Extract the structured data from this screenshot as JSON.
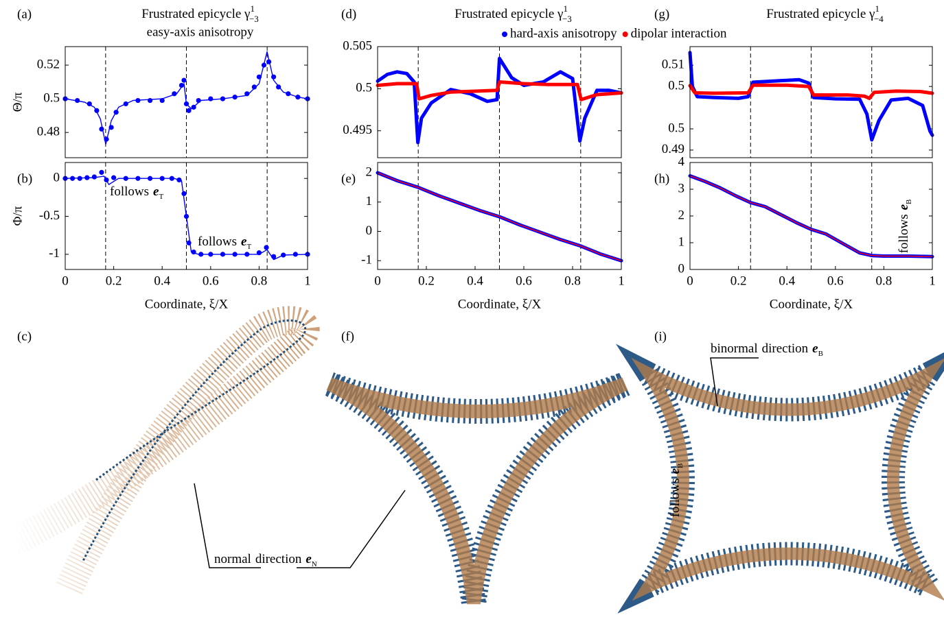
{
  "chart_data": [
    {
      "type": "line",
      "panel": "(a)",
      "title": "Frustrated epicycle γ",
      "title_sup": "1",
      "title_sub": "−3",
      "subtitle": "easy-axis anisotropy",
      "ylabel": "Θ/π",
      "xlim": [
        0,
        1
      ],
      "ylim": [
        0.465,
        0.531
      ],
      "yticks": [
        0.48,
        0.5,
        0.52
      ],
      "vlines": [
        0.1667,
        0.5,
        0.8333
      ],
      "series": [
        {
          "color": "#0000ff",
          "style": "dots",
          "x": [
            0,
            0.05,
            0.1,
            0.13,
            0.15,
            0.17,
            0.19,
            0.21,
            0.25,
            0.3,
            0.35,
            0.4,
            0.45,
            0.48,
            0.49,
            0.5,
            0.51,
            0.53,
            0.55,
            0.6,
            0.65,
            0.7,
            0.75,
            0.78,
            0.8,
            0.82,
            0.84,
            0.86,
            0.88,
            0.92,
            0.96,
            1
          ],
          "values": [
            0.5,
            0.499,
            0.497,
            0.493,
            0.482,
            0.476,
            0.483,
            0.492,
            0.497,
            0.499,
            0.499,
            0.499,
            0.503,
            0.508,
            0.511,
            0.497,
            0.493,
            0.495,
            0.499,
            0.5,
            0.5,
            0.501,
            0.503,
            0.507,
            0.513,
            0.52,
            0.522,
            0.513,
            0.507,
            0.503,
            0.501,
            0.5
          ]
        },
        {
          "color": "#0000ff",
          "style": "line",
          "x": [
            0,
            0.08,
            0.12,
            0.145,
            0.167,
            0.19,
            0.22,
            0.28,
            0.4,
            0.46,
            0.49,
            0.5,
            0.52,
            0.56,
            0.65,
            0.75,
            0.8,
            0.833,
            0.86,
            0.9,
            0.96,
            1
          ],
          "values": [
            0.5,
            0.498,
            0.495,
            0.488,
            0.473,
            0.487,
            0.495,
            0.499,
            0.5,
            0.503,
            0.509,
            0.497,
            0.494,
            0.499,
            0.5,
            0.502,
            0.509,
            0.528,
            0.511,
            0.504,
            0.501,
            0.5
          ]
        }
      ]
    },
    {
      "type": "line",
      "panel": "(b)",
      "ylabel": "Φ/π",
      "xlabel": "Coordinate, ξ/X",
      "xlim": [
        0,
        1
      ],
      "ylim": [
        -1.2,
        0.21
      ],
      "xticks": [
        0,
        0.2,
        0.4,
        0.6,
        0.8,
        1
      ],
      "yticks": [
        -1,
        -0.5,
        0
      ],
      "vlines": [
        0.1667,
        0.5,
        0.8333
      ],
      "annotations": [
        {
          "text": "follows",
          "sym": "e",
          "sub": "T"
        },
        {
          "text": "follows",
          "sym": "e",
          "sub": "T"
        }
      ],
      "series": [
        {
          "color": "#0000ff",
          "style": "dots",
          "x": [
            0,
            0.03,
            0.06,
            0.09,
            0.12,
            0.15,
            0.17,
            0.2,
            0.25,
            0.3,
            0.35,
            0.4,
            0.44,
            0.47,
            0.49,
            0.5,
            0.51,
            0.53,
            0.56,
            0.6,
            0.65,
            0.7,
            0.75,
            0.8,
            0.83,
            0.86,
            0.9,
            0.95,
            1
          ],
          "values": [
            0,
            0,
            0,
            0.01,
            0.02,
            0.08,
            -0.02,
            0.01,
            0,
            0,
            0,
            0,
            0,
            -0.02,
            -0.2,
            -0.5,
            -0.85,
            -0.97,
            -1,
            -1,
            -1,
            -1,
            -1,
            -0.98,
            -0.91,
            -1.03,
            -1.01,
            -1,
            -1
          ]
        },
        {
          "color": "#0000ff",
          "style": "line",
          "x": [
            0,
            0.12,
            0.16,
            0.18,
            0.22,
            0.45,
            0.48,
            0.5,
            0.52,
            0.55,
            0.8,
            0.833,
            0.86,
            0.9,
            1
          ],
          "values": [
            0,
            0.01,
            0.03,
            -0.08,
            0,
            0,
            -0.03,
            -0.5,
            -0.97,
            -1,
            -1,
            -0.94,
            -1.07,
            -1.01,
            -1
          ]
        }
      ]
    },
    {
      "type": "line",
      "panel": "(d)",
      "title": "Frustrated epicycle γ",
      "title_sup": "1",
      "title_sub": "−3",
      "xlim": [
        0,
        1
      ],
      "ylim": [
        0.4918,
        0.505
      ],
      "yticks": [
        0.495,
        0.5,
        0.505
      ],
      "vlines": [
        0.1667,
        0.5,
        0.8333
      ],
      "series": [
        {
          "name": "hard-axis anisotropy",
          "color": "#0000ff",
          "style": "thick",
          "x": [
            0,
            0.04,
            0.08,
            0.12,
            0.15,
            0.165,
            0.18,
            0.22,
            0.3,
            0.38,
            0.45,
            0.49,
            0.5,
            0.55,
            0.6,
            0.68,
            0.75,
            0.8,
            0.83,
            0.85,
            0.9,
            0.95,
            1
          ],
          "values": [
            0.5009,
            0.5017,
            0.502,
            0.5018,
            0.5008,
            0.4936,
            0.4965,
            0.4983,
            0.4999,
            0.4994,
            0.4985,
            0.4987,
            0.5036,
            0.5013,
            0.5004,
            0.5008,
            0.502,
            0.5012,
            0.4938,
            0.4965,
            0.4998,
            0.4998,
            0.4995
          ]
        },
        {
          "name": "dipolar interaction",
          "color": "#ff0000",
          "style": "thick",
          "x": [
            0,
            0.08,
            0.16,
            0.17,
            0.22,
            0.3,
            0.4,
            0.49,
            0.5,
            0.6,
            0.7,
            0.82,
            0.835,
            0.9,
            1
          ],
          "values": [
            0.5004,
            0.5006,
            0.5006,
            0.4988,
            0.4992,
            0.4996,
            0.4997,
            0.4998,
            0.5008,
            0.5006,
            0.5005,
            0.5005,
            0.4987,
            0.4993,
            0.4995
          ]
        }
      ]
    },
    {
      "type": "line",
      "panel": "(e)",
      "xlabel": "Coordinate, ξ/X",
      "xlim": [
        0,
        1
      ],
      "ylim": [
        -1.3,
        2.35
      ],
      "xticks": [
        0,
        0.2,
        0.4,
        0.6,
        0.8,
        1
      ],
      "yticks": [
        -1,
        0,
        1,
        2
      ],
      "vlines": [
        0.1667,
        0.5,
        0.8333
      ],
      "series": [
        {
          "color": "#0000ff",
          "style": "thick",
          "x": [
            0,
            0.0833,
            0.1667,
            0.25,
            0.3333,
            0.4167,
            0.5,
            0.5833,
            0.6667,
            0.75,
            0.8333,
            0.9167,
            1
          ],
          "values": [
            2,
            1.72,
            1.5,
            1.22,
            0.97,
            0.72,
            0.5,
            0.22,
            -0.03,
            -0.28,
            -0.5,
            -0.78,
            -1
          ]
        },
        {
          "color": "#ff0000",
          "style": "line",
          "x": [
            0,
            0.0833,
            0.1667,
            0.25,
            0.3333,
            0.4167,
            0.5,
            0.5833,
            0.6667,
            0.75,
            0.8333,
            0.9167,
            1
          ],
          "values": [
            2,
            1.72,
            1.5,
            1.22,
            0.97,
            0.72,
            0.5,
            0.22,
            -0.03,
            -0.28,
            -0.5,
            -0.78,
            -1
          ]
        }
      ]
    },
    {
      "type": "line",
      "panel": "(g)",
      "title": "Frustrated epicycle γ",
      "title_sup": "1",
      "title_sub": "−4",
      "xlim": [
        0,
        1
      ],
      "ylim": [
        0.4882,
        0.5144
      ],
      "yticks": [
        0.49,
        {
          "value": 0.495,
          "label": "0.5"
        },
        {
          "value": 0.505,
          "label": "0.5"
        },
        0.51
      ],
      "vlines": [
        0.25,
        0.5,
        0.75
      ],
      "series": [
        {
          "color": "#0000ff",
          "style": "thick",
          "x": [
            0,
            0.01,
            0.03,
            0.1,
            0.2,
            0.24,
            0.26,
            0.35,
            0.45,
            0.49,
            0.51,
            0.6,
            0.7,
            0.73,
            0.75,
            0.78,
            0.83,
            0.9,
            0.96,
            0.99,
            1
          ],
          "values": [
            0.513,
            0.505,
            0.5026,
            0.5024,
            0.5022,
            0.5026,
            0.506,
            0.5063,
            0.5066,
            0.5058,
            0.5024,
            0.5021,
            0.502,
            0.4985,
            0.4924,
            0.497,
            0.5018,
            0.5022,
            0.5005,
            0.4945,
            0.4935
          ]
        },
        {
          "color": "#ff0000",
          "style": "thick",
          "x": [
            0,
            0.02,
            0.1,
            0.24,
            0.26,
            0.4,
            0.49,
            0.51,
            0.65,
            0.72,
            0.74,
            0.76,
            0.85,
            0.95,
            1
          ],
          "values": [
            0.5052,
            0.5035,
            0.5034,
            0.5035,
            0.5053,
            0.5053,
            0.505,
            0.503,
            0.503,
            0.5027,
            0.5022,
            0.5036,
            0.5039,
            0.5038,
            0.5034
          ]
        }
      ]
    },
    {
      "type": "line",
      "panel": "(h)",
      "xlabel": "Coordinate, ξ/X",
      "xlim": [
        0,
        1
      ],
      "ylim": [
        0,
        4
      ],
      "xticks": [
        0,
        0.2,
        0.4,
        0.6,
        0.8,
        1
      ],
      "yticks": [
        0,
        1,
        2,
        3,
        4
      ],
      "vlines": [
        0.25,
        0.5,
        0.75
      ],
      "annotations": [
        {
          "text": "follows",
          "sym": "e",
          "sub": "B"
        }
      ],
      "series": [
        {
          "color": "#0000ff",
          "style": "thick",
          "x": [
            0,
            0.06,
            0.125,
            0.19,
            0.25,
            0.31,
            0.375,
            0.44,
            0.5,
            0.56,
            0.625,
            0.7,
            0.75,
            0.8,
            0.9,
            1
          ],
          "values": [
            3.5,
            3.3,
            3.05,
            2.75,
            2.5,
            2.35,
            2.05,
            1.75,
            1.5,
            1.33,
            1.0,
            0.62,
            0.52,
            0.5,
            0.5,
            0.48
          ]
        },
        {
          "color": "#ff0000",
          "style": "line",
          "x": [
            0,
            0.06,
            0.125,
            0.19,
            0.25,
            0.31,
            0.375,
            0.44,
            0.5,
            0.56,
            0.625,
            0.7,
            0.75,
            0.8,
            0.9,
            1
          ],
          "values": [
            3.5,
            3.3,
            3.05,
            2.75,
            2.5,
            2.35,
            2.05,
            1.75,
            1.5,
            1.33,
            1.0,
            0.62,
            0.52,
            0.5,
            0.5,
            0.48
          ]
        }
      ]
    }
  ],
  "illustrations": {
    "panels": [
      "(c)",
      "(f)",
      "(i)"
    ],
    "callouts": [
      {
        "text": "normal",
        "text2": "direction",
        "sym": "e",
        "sub": "N"
      },
      {
        "text": "binormal",
        "text2": "direction",
        "sym": "e",
        "sub": "B"
      },
      {
        "text": "follows",
        "sym": "e",
        "sub": "B"
      }
    ]
  }
}
